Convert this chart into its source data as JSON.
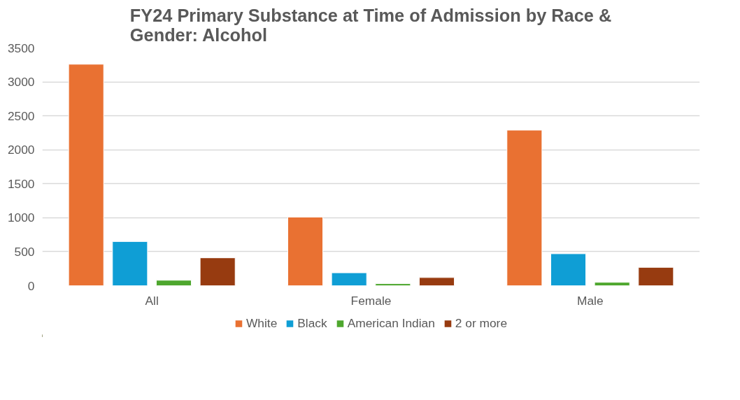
{
  "chart_data": {
    "type": "bar",
    "title": "FY24 Primary Substance at Time of Admission by Race &\nGender: Alcohol",
    "categories": [
      "All",
      "Female",
      "Male"
    ],
    "series": [
      {
        "name": "White",
        "color": "#e97132",
        "values": [
          3260,
          1010,
          2290
        ]
      },
      {
        "name": "Black",
        "color": "#0f9ed5",
        "values": [
          650,
          190,
          470
        ]
      },
      {
        "name": "American Indian",
        "color": "#4ea72e",
        "values": [
          80,
          30,
          50
        ]
      },
      {
        "name": "2 or more",
        "color": "#973b10",
        "values": [
          410,
          120,
          270
        ]
      }
    ],
    "ylim": [
      0,
      3500
    ],
    "yticks": [
      0,
      500,
      1000,
      1500,
      2000,
      2500,
      3000,
      3500
    ],
    "grid": "y",
    "legend": "bottom"
  }
}
